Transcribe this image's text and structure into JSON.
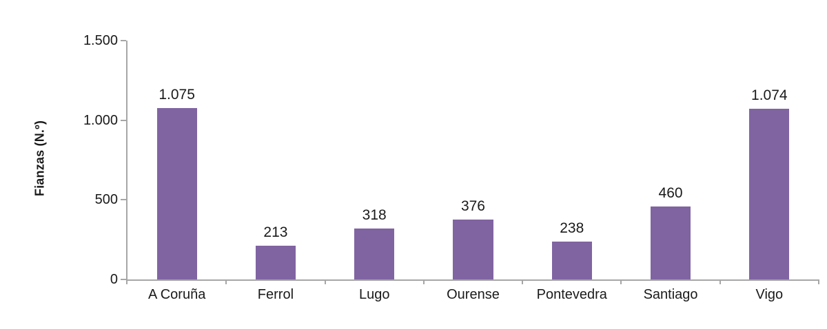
{
  "chart_data": {
    "type": "bar",
    "title": "",
    "xlabel": "",
    "ylabel": "Fianzas (N.º)",
    "categories": [
      "A Coruña",
      "Ferrol",
      "Lugo",
      "Ourense",
      "Pontevedra",
      "Santiago",
      "Vigo"
    ],
    "values": [
      1075,
      213,
      318,
      376,
      238,
      460,
      1074
    ],
    "value_labels": [
      "1.075",
      "213",
      "318",
      "376",
      "238",
      "460",
      "1.074"
    ],
    "ylim": [
      0,
      1500
    ],
    "y_ticks": [
      {
        "value": 0,
        "label": "0"
      },
      {
        "value": 500,
        "label": "500"
      },
      {
        "value": 1000,
        "label": "1.000"
      },
      {
        "value": 1500,
        "label": "1.500"
      }
    ],
    "grid": false,
    "legend": false,
    "colors": {
      "bar": "#8064A2",
      "axis": "#A6A6A6",
      "text": "#1A1A1A",
      "background": "#FFFFFF"
    }
  }
}
